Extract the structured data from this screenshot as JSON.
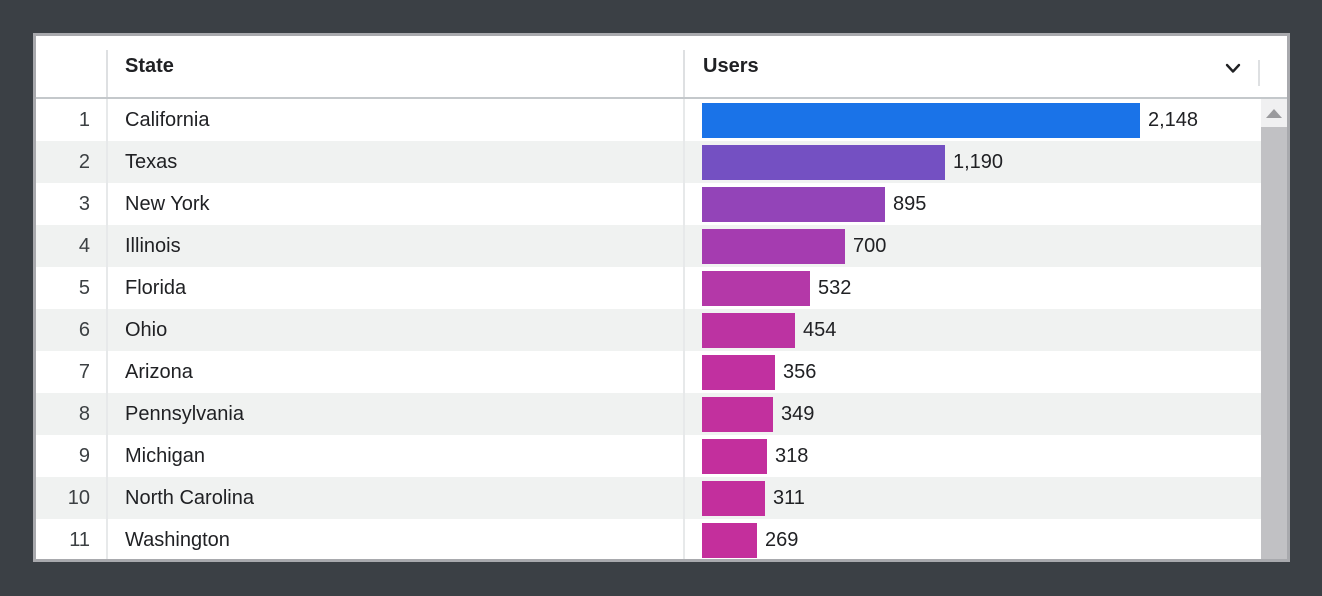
{
  "header": {
    "state_label": "State",
    "users_label": "Users",
    "sort_icon": "chevron-down"
  },
  "chart_data": {
    "type": "bar",
    "orientation": "horizontal",
    "title": "",
    "columns": [
      "State",
      "Users"
    ],
    "ranks": [
      "1",
      "2",
      "3",
      "4",
      "5",
      "6",
      "7",
      "8",
      "9",
      "10",
      "11"
    ],
    "categories": [
      "California",
      "Texas",
      "New York",
      "Illinois",
      "Florida",
      "Ohio",
      "Arizona",
      "Pennsylvania",
      "Michigan",
      "North Carolina",
      "Washington"
    ],
    "values": [
      2148,
      1190,
      895,
      700,
      532,
      454,
      356,
      349,
      318,
      311,
      269
    ],
    "value_labels": [
      "2,148",
      "1,190",
      "895",
      "700",
      "532",
      "454",
      "356",
      "349",
      "318",
      "311",
      "269"
    ],
    "bar_colors": [
      "#1a73e8",
      "#7450c2",
      "#9344b8",
      "#a53cb0",
      "#b438a8",
      "#bc33a2",
      "#c130a0",
      "#c2309e",
      "#c32f9d",
      "#c32f9d",
      "#c42f9c"
    ],
    "max_value": 2148,
    "xlim": [
      0,
      2148
    ],
    "grid": "off",
    "legend": "none"
  },
  "colors": {
    "frame_background": "#3b4045",
    "card_background": "#ffffff",
    "card_border": "#a8a9ad",
    "header_border": "#c4c8cb",
    "row_stripe": "#f0f2f1",
    "column_divider": "#e7e9ea",
    "header_text": "#202124",
    "cell_text": "#202124",
    "index_text": "#3c4043",
    "scrollbar_track": "#f0f0f1",
    "scrollbar_thumb": "#c1c1c4",
    "scrollbar_arrow": "#9a9a9d",
    "top_bar_color": "#1a73e8"
  }
}
